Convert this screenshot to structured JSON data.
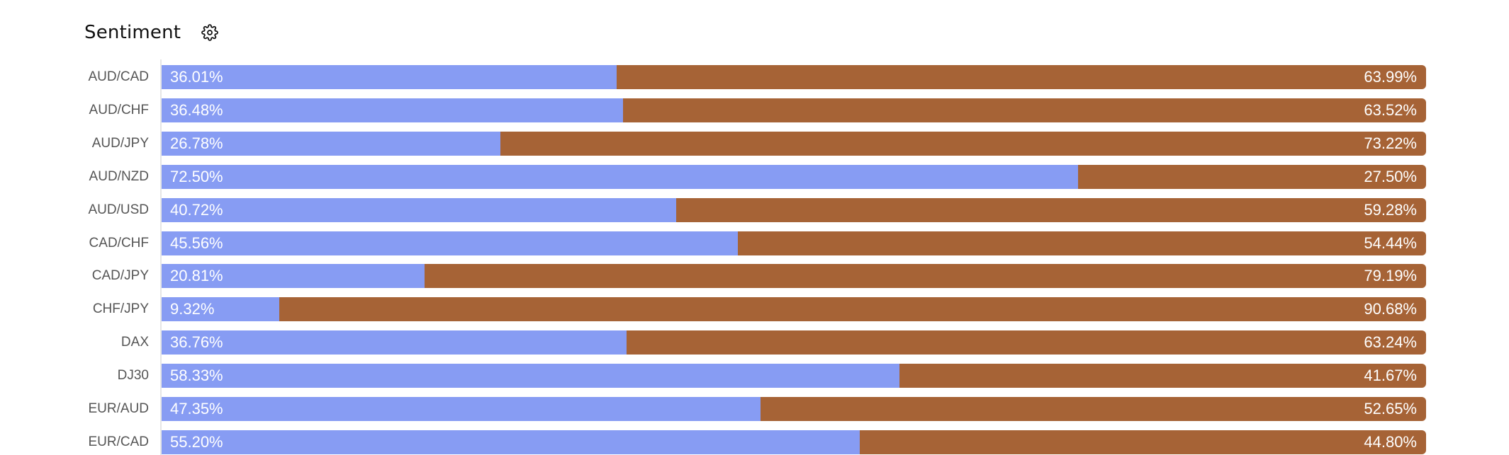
{
  "header": {
    "title": "Sentiment",
    "settings_icon": "gear-icon"
  },
  "colors": {
    "long": "#879cf3",
    "short": "#a66336"
  },
  "chart_data": {
    "type": "bar",
    "orientation": "horizontal",
    "stacked": true,
    "title": "Sentiment",
    "xlim": [
      0,
      100
    ],
    "categories": [
      "AUD/CAD",
      "AUD/CHF",
      "AUD/JPY",
      "AUD/NZD",
      "AUD/USD",
      "CAD/CHF",
      "CAD/JPY",
      "CHF/JPY",
      "DAX",
      "DJ30",
      "EUR/AUD",
      "EUR/CAD"
    ],
    "series": [
      {
        "color": "#879cf3",
        "values": [
          36.01,
          36.48,
          26.78,
          72.5,
          40.72,
          45.56,
          20.81,
          9.32,
          36.76,
          58.33,
          47.35,
          55.2
        ],
        "labels": [
          "36.01%",
          "36.48%",
          "26.78%",
          "72.50%",
          "40.72%",
          "45.56%",
          "20.81%",
          "9.32%",
          "36.76%",
          "58.33%",
          "47.35%",
          "55.20%"
        ]
      },
      {
        "color": "#a66336",
        "values": [
          63.99,
          63.52,
          73.22,
          27.5,
          59.28,
          54.44,
          79.19,
          90.68,
          63.24,
          41.67,
          52.65,
          44.8
        ],
        "labels": [
          "63.99%",
          "63.52%",
          "73.22%",
          "27.50%",
          "59.28%",
          "54.44%",
          "79.19%",
          "90.68%",
          "63.24%",
          "41.67%",
          "52.65%",
          "44.80%"
        ]
      }
    ]
  }
}
